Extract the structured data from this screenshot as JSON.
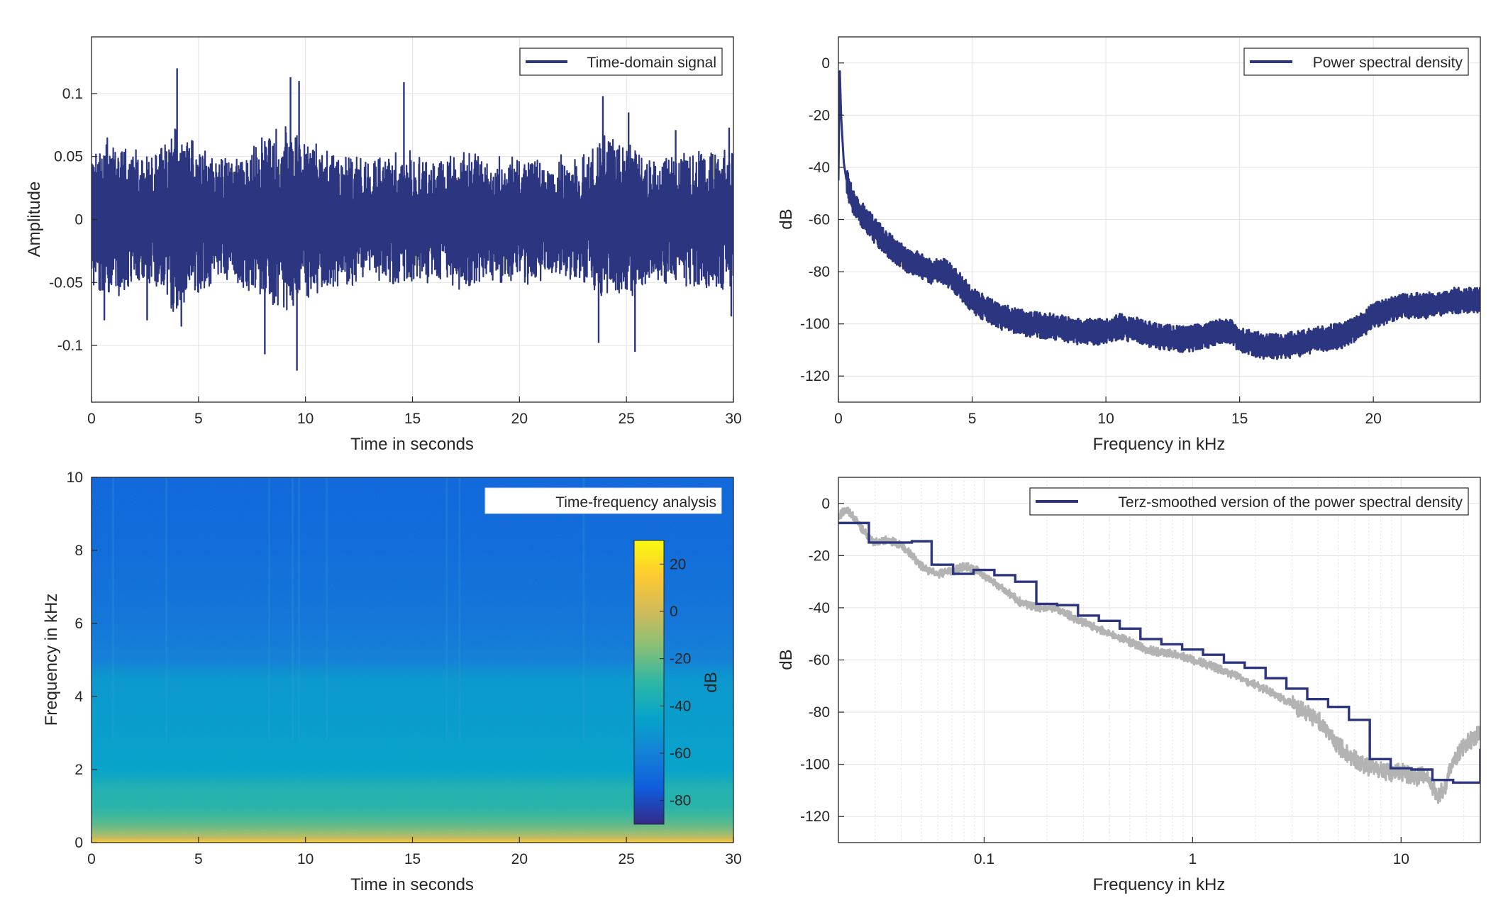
{
  "colors": {
    "line": "#2b3580",
    "gray_line": "#b3b3b3",
    "grid": "#e3e3e3",
    "axis": "#262626",
    "parula": [
      "#352a87",
      "#0f5cdd",
      "#1481d6",
      "#06a4ca",
      "#2eb7a4",
      "#87bf77",
      "#d1bb59",
      "#fec832",
      "#f9fb0e"
    ]
  },
  "chart_data": [
    {
      "id": "time-domain",
      "type": "line",
      "legend": "Time-domain signal",
      "legend_position": "top-right",
      "xlabel": "Time in seconds",
      "ylabel": "Amplitude",
      "xlim": [
        0,
        30
      ],
      "ylim": [
        -0.145,
        0.145
      ],
      "xticks": [
        0,
        5,
        10,
        15,
        20,
        25,
        30
      ],
      "xtick_labels": [
        "0",
        "5",
        "10",
        "15",
        "20",
        "25",
        "30"
      ],
      "yticks": [
        -0.1,
        -0.05,
        0,
        0.05,
        0.1
      ],
      "ytick_labels": [
        "-0.1",
        "-0.05",
        "0",
        "0.05",
        "0.1"
      ],
      "grid": true,
      "envelope": {
        "t": [
          0,
          1,
          2,
          3,
          4,
          5,
          6,
          7,
          8,
          9,
          10,
          11,
          12,
          13,
          14,
          15,
          16,
          17,
          18,
          19,
          20,
          21,
          22,
          23,
          24,
          25,
          26,
          27,
          28,
          29,
          30
        ],
        "amp": [
          0.055,
          0.06,
          0.05,
          0.05,
          0.075,
          0.055,
          0.045,
          0.05,
          0.06,
          0.075,
          0.065,
          0.05,
          0.05,
          0.045,
          0.05,
          0.05,
          0.045,
          0.055,
          0.05,
          0.045,
          0.05,
          0.045,
          0.045,
          0.05,
          0.065,
          0.06,
          0.05,
          0.05,
          0.05,
          0.055,
          0.05
        ]
      },
      "peaks": [
        {
          "t": 4.0,
          "v": 0.12
        },
        {
          "t": 9.3,
          "v": 0.113
        },
        {
          "t": 9.7,
          "v": 0.11
        },
        {
          "t": 14.6,
          "v": 0.109
        },
        {
          "t": 23.9,
          "v": 0.098
        },
        {
          "t": 25.1,
          "v": 0.085
        },
        {
          "t": 27.3,
          "v": 0.071
        },
        {
          "t": 29.8,
          "v": 0.073
        },
        {
          "t": 9.6,
          "v": -0.12
        },
        {
          "t": 8.1,
          "v": -0.107
        },
        {
          "t": 25.4,
          "v": -0.105
        },
        {
          "t": 23.7,
          "v": -0.098
        },
        {
          "t": 4.2,
          "v": -0.085
        },
        {
          "t": 29.9,
          "v": -0.077
        },
        {
          "t": 0.6,
          "v": -0.08
        },
        {
          "t": 2.6,
          "v": -0.08
        }
      ]
    },
    {
      "id": "psd",
      "type": "line",
      "legend": "Power spectral density",
      "legend_position": "top-right",
      "xlabel": "Frequency in kHz",
      "ylabel": "dB",
      "xlim": [
        0,
        24
      ],
      "ylim": [
        -130,
        10
      ],
      "xticks": [
        0,
        5,
        10,
        15,
        20
      ],
      "xtick_labels": [
        "0",
        "5",
        "10",
        "15",
        "20"
      ],
      "yticks": [
        0,
        -20,
        -40,
        -60,
        -80,
        -100,
        -120
      ],
      "ytick_labels": [
        "0",
        "-20",
        "-40",
        "-60",
        "-80",
        "-100",
        "-120"
      ],
      "grid": true,
      "x": [
        0,
        0.05,
        0.1,
        0.2,
        0.3,
        0.5,
        1,
        1.5,
        2,
        2.5,
        3,
        3.5,
        4,
        4.5,
        5,
        6,
        7,
        8,
        9,
        10,
        10.5,
        11,
        12,
        13,
        14,
        14.5,
        15,
        16,
        17,
        18,
        19,
        19.5,
        20,
        21,
        22,
        23,
        24
      ],
      "y": [
        -45,
        -2,
        -20,
        -38,
        -45,
        -52,
        -60,
        -66,
        -71,
        -75,
        -77,
        -80,
        -80,
        -85,
        -91,
        -97,
        -100,
        -101,
        -103,
        -103,
        -101,
        -102,
        -105,
        -106,
        -104,
        -102,
        -106,
        -109,
        -108,
        -106,
        -104,
        -101,
        -97,
        -93,
        -93,
        -91,
        -91
      ]
    },
    {
      "id": "spectrogram",
      "type": "heatmap",
      "legend": "Time-frequency analysis",
      "legend_position": "top-right",
      "xlabel": "Time in seconds",
      "ylabel": "Frequency in kHz",
      "xlim": [
        0,
        30
      ],
      "ylim": [
        0,
        10
      ],
      "xticks": [
        0,
        5,
        10,
        15,
        20,
        25,
        30
      ],
      "xtick_labels": [
        "0",
        "5",
        "10",
        "15",
        "20",
        "25",
        "30"
      ],
      "yticks": [
        0,
        2,
        4,
        6,
        8,
        10
      ],
      "ytick_labels": [
        "0",
        "2",
        "4",
        "6",
        "8",
        "10"
      ],
      "profile": {
        "freq_khz": [
          0,
          0.1,
          0.3,
          0.6,
          1.0,
          1.5,
          2.0,
          3.0,
          4.5,
          5.0,
          6.0,
          8.0,
          10.0
        ],
        "db": [
          20,
          0,
          -15,
          -25,
          -32,
          -35,
          -45,
          -47,
          -50,
          -60,
          -64,
          -68,
          -70
        ]
      },
      "colorbar": {
        "label": "dB",
        "range": [
          -90,
          30
        ],
        "ticks": [
          20,
          0,
          -20,
          -40,
          -60,
          -80
        ],
        "tick_labels": [
          "20",
          "0",
          "-20",
          "-40",
          "-60",
          "-80"
        ]
      }
    },
    {
      "id": "terz",
      "type": "line",
      "legend": "Terz-smoothed version of the power spectral density",
      "legend_position": "top-right",
      "xlabel": "Frequency in kHz",
      "ylabel": "dB",
      "xscale": "log",
      "xlim": [
        0.02,
        24
      ],
      "ylim": [
        -130,
        10
      ],
      "xticks": [
        0.1,
        1,
        10
      ],
      "xtick_labels": [
        "0.1",
        "1",
        "10"
      ],
      "yticks": [
        0,
        -20,
        -40,
        -60,
        -80,
        -100,
        -120
      ],
      "ytick_labels": [
        "0",
        "-20",
        "-40",
        "-60",
        "-80",
        "-100",
        "-120"
      ],
      "grid": true,
      "series": [
        {
          "kind": "raw",
          "x": [
            0.02,
            0.022,
            0.025,
            0.028,
            0.03,
            0.035,
            0.04,
            0.045,
            0.05,
            0.055,
            0.06,
            0.07,
            0.08,
            0.09,
            0.1,
            0.12,
            0.15,
            0.18,
            0.22,
            0.27,
            0.33,
            0.4,
            0.5,
            0.6,
            0.7,
            0.85,
            1,
            1.2,
            1.5,
            1.8,
            2.2,
            2.7,
            3.3,
            4,
            4.5,
            5,
            6,
            7,
            8,
            9,
            10,
            11,
            12,
            13,
            14,
            15,
            16,
            17,
            18,
            19,
            20,
            22,
            24
          ],
          "y": [
            -5,
            -2,
            -8,
            -13,
            -15,
            -14,
            -16,
            -20,
            -24,
            -26,
            -27,
            -26,
            -24,
            -25,
            -28,
            -32,
            -38,
            -40,
            -40,
            -44,
            -47,
            -50,
            -53,
            -56,
            -57,
            -58,
            -60,
            -62,
            -65,
            -68,
            -71,
            -75,
            -79,
            -83,
            -88,
            -93,
            -98,
            -101,
            -102,
            -104,
            -103,
            -104,
            -105,
            -104,
            -108,
            -112,
            -110,
            -104,
            -98,
            -95,
            -93,
            -90,
            -88
          ]
        },
        {
          "kind": "smoothed",
          "edges": [
            0.02,
            0.028,
            0.045,
            0.056,
            0.071,
            0.089,
            0.112,
            0.141,
            0.178,
            0.224,
            0.282,
            0.355,
            0.447,
            0.562,
            0.708,
            0.891,
            1.122,
            1.413,
            1.778,
            2.239,
            2.818,
            3.548,
            4.467,
            5.623,
            7.079,
            8.913,
            11.22,
            14.13,
            17.78,
            24
          ],
          "y": [
            -7.5,
            -15,
            -14.5,
            -23.5,
            -27,
            -25.5,
            -27.5,
            -30,
            -38.5,
            -39,
            -43,
            -45,
            -48,
            -52,
            -54,
            -56,
            -58,
            -61,
            -63,
            -67,
            -71,
            -75,
            -78,
            -83,
            -98,
            -101.5,
            -102,
            -106,
            -107,
            -94
          ]
        }
      ]
    }
  ]
}
